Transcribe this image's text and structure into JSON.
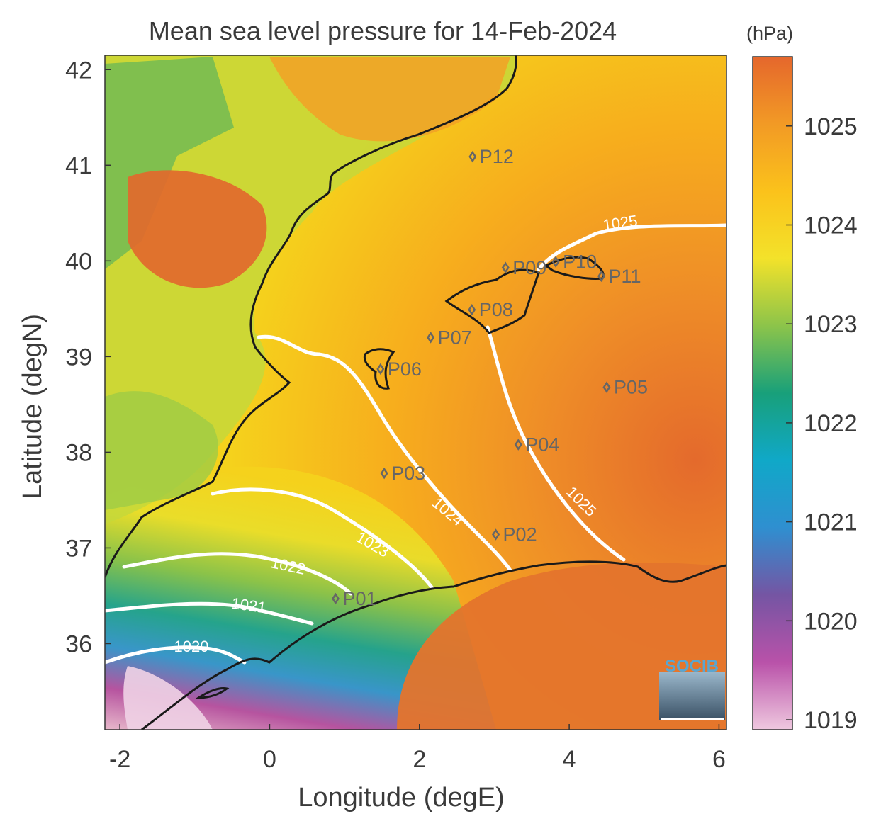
{
  "title": "Mean sea level pressure for 14-Feb-2024",
  "units_label": "(hPa)",
  "x_axis": {
    "label": "Longitude (degE)",
    "ticks": [
      "-2",
      "0",
      "2",
      "4",
      "6"
    ],
    "range": [
      -2.2,
      6.1
    ]
  },
  "y_axis": {
    "label": "Latitude (degN)",
    "ticks": [
      "42",
      "41",
      "40",
      "39",
      "38",
      "37",
      "36"
    ],
    "range": [
      35.1,
      42.15
    ]
  },
  "colorbar": {
    "ticks": [
      "1025",
      "1024",
      "1023",
      "1022",
      "1021",
      "1020",
      "1019"
    ],
    "range": [
      1018.9,
      1025.7
    ],
    "colors": [
      "#efc8df",
      "#b952a9",
      "#7555a3",
      "#2f8fd0",
      "#10a8c8",
      "#18a07a",
      "#8cc44a",
      "#f3e22a",
      "#fbc21b",
      "#f29a25",
      "#e5672c"
    ]
  },
  "contour_labels": [
    "1020",
    "1021",
    "1022",
    "1023",
    "1024",
    "1025",
    "1025"
  ],
  "stations": [
    {
      "id": "P01",
      "lon": 0.88,
      "lat": 36.47
    },
    {
      "id": "P02",
      "lon": 3.02,
      "lat": 37.14
    },
    {
      "id": "P03",
      "lon": 1.53,
      "lat": 37.78
    },
    {
      "id": "P04",
      "lon": 3.32,
      "lat": 38.08
    },
    {
      "id": "P05",
      "lon": 4.5,
      "lat": 38.68
    },
    {
      "id": "P06",
      "lon": 1.48,
      "lat": 38.87
    },
    {
      "id": "P07",
      "lon": 2.15,
      "lat": 39.2
    },
    {
      "id": "P08",
      "lon": 2.7,
      "lat": 39.49
    },
    {
      "id": "P09",
      "lon": 3.15,
      "lat": 39.93
    },
    {
      "id": "P10",
      "lon": 3.82,
      "lat": 39.99
    },
    {
      "id": "P11",
      "lon": 4.43,
      "lat": 39.84
    },
    {
      "id": "P12",
      "lon": 2.71,
      "lat": 41.09
    }
  ],
  "logo": {
    "text": "SOCIB"
  }
}
